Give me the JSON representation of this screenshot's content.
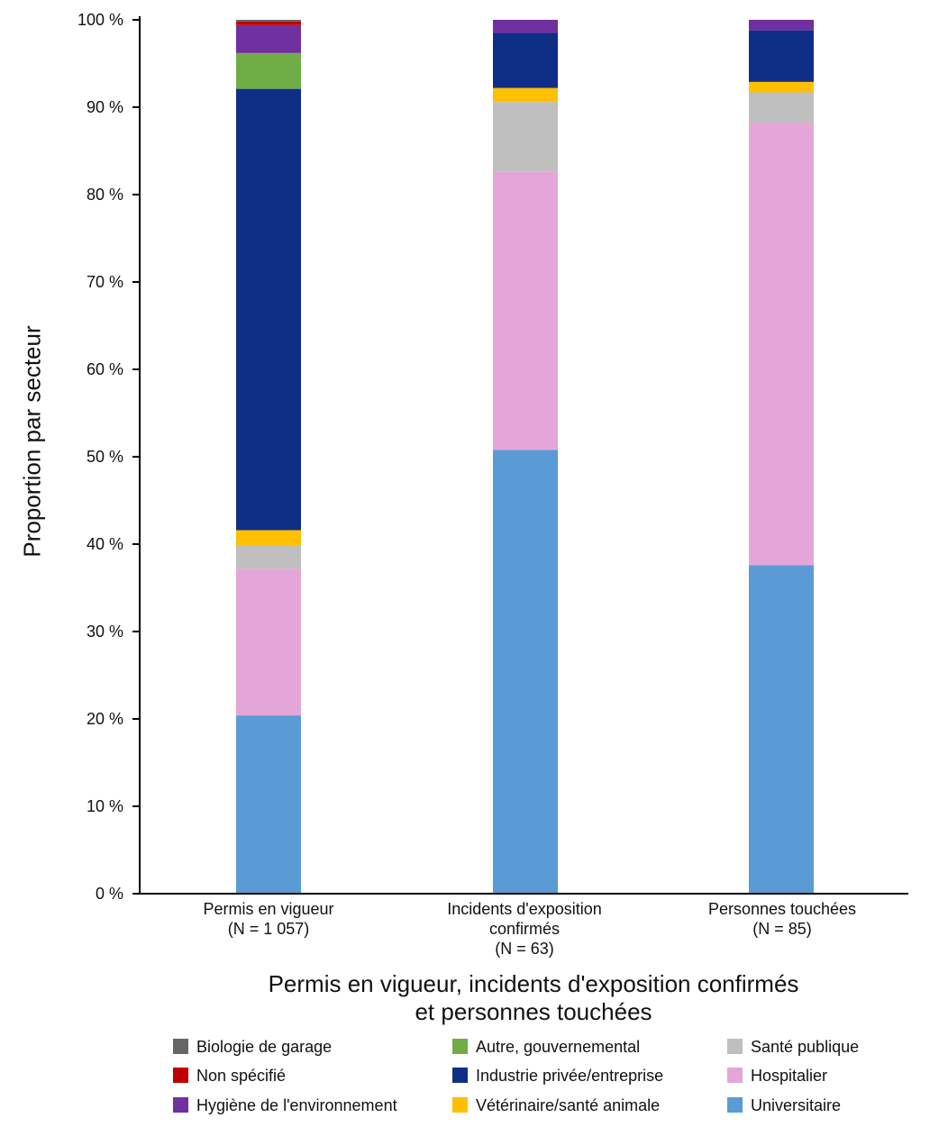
{
  "chart_data": {
    "type": "stacked-bar-100",
    "ylabel": "Proportion par secteur",
    "xlabel_lines": [
      "Permis en vigueur, incidents d'exposition confirmés",
      "et personnes touchées"
    ],
    "ylim": [
      0,
      100
    ],
    "yticks": [
      "0 %",
      "10 %",
      "20 %",
      "30 %",
      "40 %",
      "50 %",
      "60 %",
      "70 %",
      "80 %",
      "90 %",
      "100 %"
    ],
    "categories": [
      [
        "Permis en vigueur",
        "(N = 1 057)"
      ],
      [
        "Incidents d'exposition",
        "confirmés",
        "(N = 63)"
      ],
      [
        "Personnes touchées",
        "(N = 85)"
      ]
    ],
    "series": [
      {
        "name": "Universitaire",
        "color": "#5b9bd5",
        "values": [
          20.4,
          50.8,
          37.6
        ]
      },
      {
        "name": "Hospitalier",
        "color": "#e4a6d8",
        "values": [
          16.8,
          31.8,
          50.6
        ]
      },
      {
        "name": "Santé publique",
        "color": "#bfbfbf",
        "values": [
          2.6,
          8.0,
          3.5
        ]
      },
      {
        "name": "Vétérinaire/santé animale",
        "color": "#ffc000",
        "values": [
          1.8,
          1.6,
          1.2
        ]
      },
      {
        "name": "Industrie privée/entreprise",
        "color": "#0f2f87",
        "values": [
          50.5,
          6.3,
          5.9
        ]
      },
      {
        "name": "Autre, gouvernemental",
        "color": "#70ad47",
        "values": [
          4.1,
          0,
          0
        ]
      },
      {
        "name": "Hygiène de l'environnement",
        "color": "#7030a0",
        "values": [
          3.2,
          1.5,
          1.2
        ]
      },
      {
        "name": "Non spécifié",
        "color": "#c00000",
        "values": [
          0.4,
          0,
          0
        ]
      },
      {
        "name": "Biologie de garage",
        "color": "#666666",
        "values": [
          0.2,
          0,
          0
        ]
      }
    ],
    "legend": [
      [
        "Biologie de garage",
        "Autre, gouvernemental",
        "Santé publique"
      ],
      [
        "Non spécifié",
        "Industrie privée/entreprise",
        "Hospitalier"
      ],
      [
        "Hygiène de l'environnement",
        "Vétérinaire/santé animale",
        "Universitaire"
      ]
    ]
  }
}
